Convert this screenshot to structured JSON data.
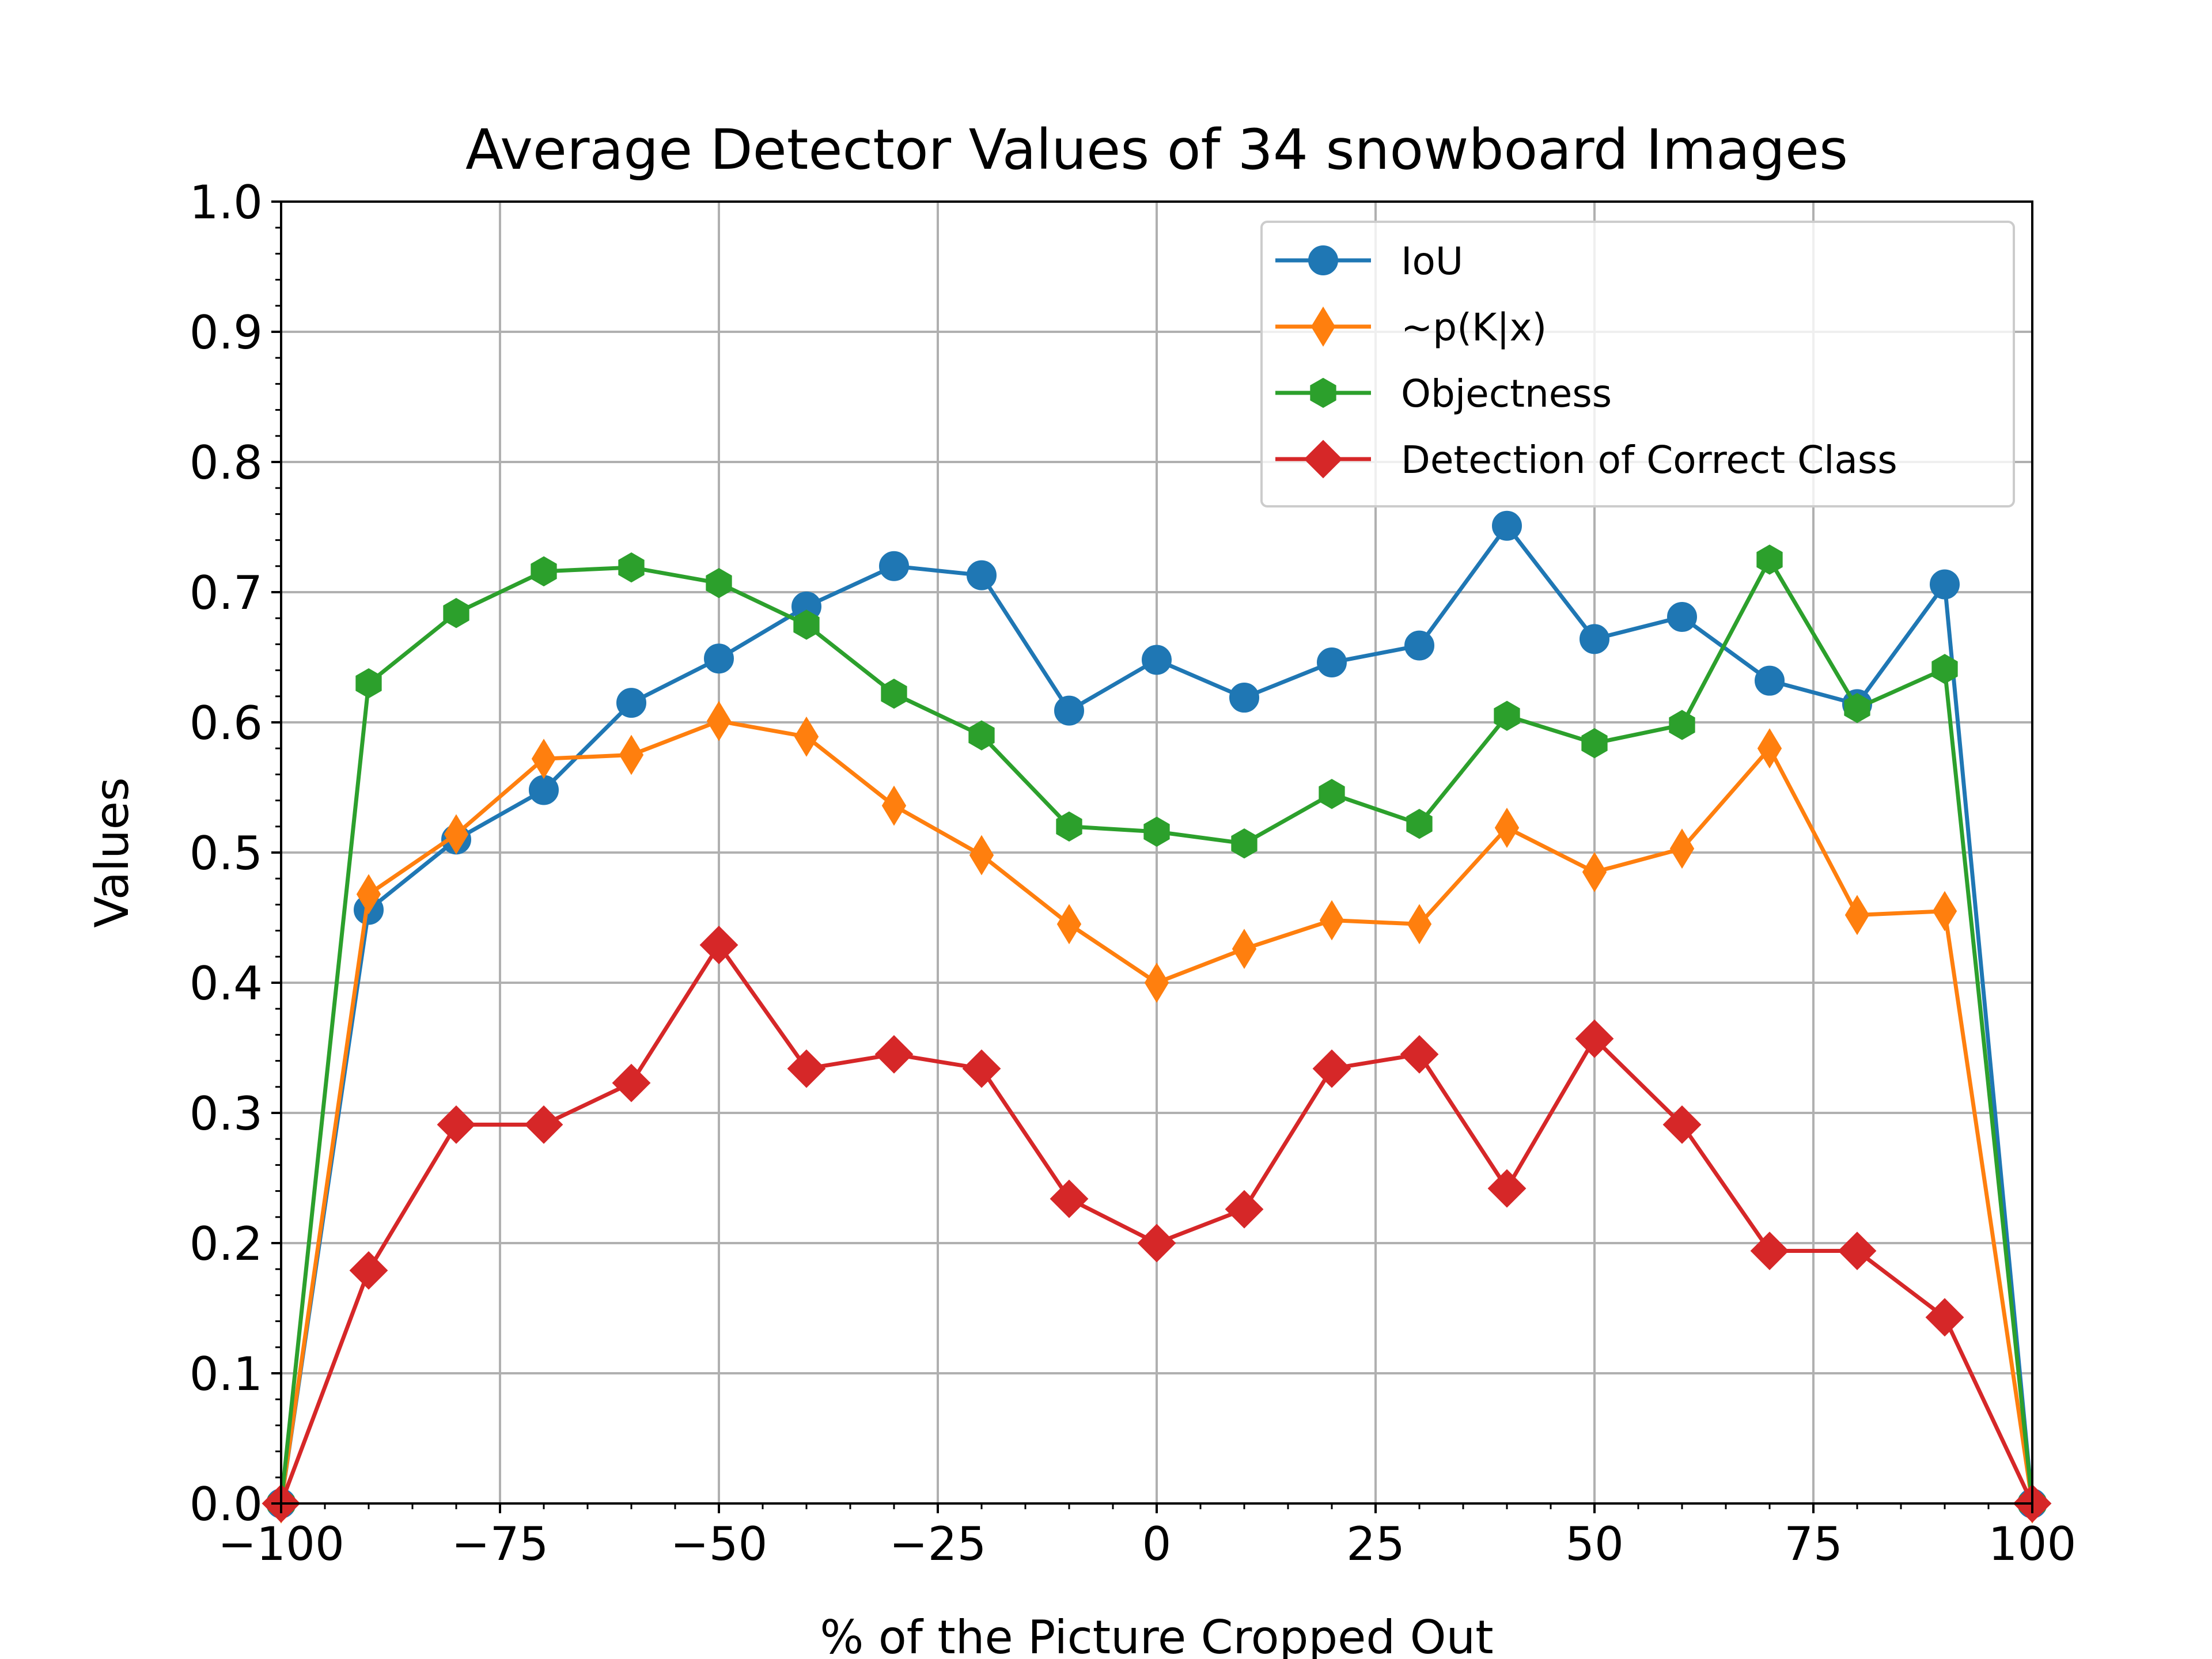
{
  "chart_data": {
    "type": "line",
    "title": "Average Detector Values of 34 snowboard Images",
    "xlabel": "% of the Picture Cropped Out",
    "ylabel": "Values",
    "xlim": [
      -100,
      100
    ],
    "ylim": [
      0,
      1
    ],
    "x_ticks": [
      "−100",
      "−75",
      "−50",
      "−25",
      "0",
      "25",
      "50",
      "75",
      "100"
    ],
    "y_ticks": [
      "0.0",
      "0.1",
      "0.2",
      "0.3",
      "0.4",
      "0.5",
      "0.6",
      "0.7",
      "0.8",
      "0.9",
      "1.0"
    ],
    "grid": true,
    "legend_position": "top-right",
    "x": [
      -100,
      -90,
      -80,
      -70,
      -60,
      -50,
      -40,
      -30,
      -20,
      -10,
      0,
      10,
      20,
      30,
      40,
      50,
      60,
      70,
      80,
      90,
      100
    ],
    "series": [
      {
        "name": "IoU",
        "color": "#1f77b4",
        "marker": "circle",
        "values": [
          0.0,
          0.456,
          0.51,
          0.548,
          0.615,
          0.649,
          0.689,
          0.72,
          0.713,
          0.609,
          0.648,
          0.619,
          0.646,
          0.659,
          0.751,
          0.664,
          0.681,
          0.632,
          0.614,
          0.706,
          0.0
        ]
      },
      {
        "name": "~p(K|x)",
        "color": "#ff7f0e",
        "marker": "thin-diamond",
        "values": [
          0.0,
          0.468,
          0.514,
          0.572,
          0.575,
          0.601,
          0.589,
          0.536,
          0.498,
          0.445,
          0.4,
          0.426,
          0.448,
          0.445,
          0.519,
          0.485,
          0.503,
          0.58,
          0.452,
          0.455,
          0.0
        ]
      },
      {
        "name": "Objectness",
        "color": "#2ca02c",
        "marker": "hexagon",
        "values": [
          0.0,
          0.63,
          0.684,
          0.716,
          0.719,
          0.707,
          0.675,
          0.622,
          0.59,
          0.52,
          0.516,
          0.507,
          0.545,
          0.522,
          0.605,
          0.584,
          0.598,
          0.725,
          0.611,
          0.641,
          0.0
        ]
      },
      {
        "name": "Detection of Correct Class",
        "color": "#d62728",
        "marker": "diamond",
        "values": [
          0.0,
          0.179,
          0.291,
          0.291,
          0.323,
          0.429,
          0.334,
          0.345,
          0.334,
          0.234,
          0.2,
          0.226,
          0.334,
          0.345,
          0.242,
          0.357,
          0.291,
          0.194,
          0.194,
          0.143,
          0.0
        ]
      }
    ]
  }
}
